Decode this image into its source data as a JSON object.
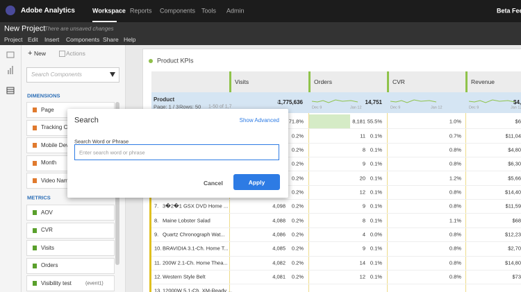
{
  "topbar": {
    "app": "Adobe Analytics",
    "nav": [
      "Workspace",
      "Reports",
      "Components",
      "Tools",
      "Admin"
    ],
    "right": "Beta Feed"
  },
  "project": {
    "title": "New Project",
    "status": "There are unsaved changes",
    "menu": [
      "Project",
      "Edit",
      "Insert",
      "Components",
      "Share",
      "Help"
    ]
  },
  "sidebar": {
    "new": "New",
    "actions": "Actions",
    "search_placeholder": "Search Components",
    "dimensions_heading": "DIMENSIONS",
    "dimensions": [
      "Page",
      "Tracking Co",
      "Mobile Dev",
      "Month",
      "Video Nam"
    ],
    "metrics_heading": "METRICS",
    "metrics": [
      "AOV",
      "CVR",
      "Visits",
      "Orders",
      "Visibility test"
    ],
    "metric_note": "(event1)"
  },
  "panel": {
    "title": "Product KPIs",
    "columns": [
      "Visits",
      "Orders",
      "CVR",
      "Revenue"
    ],
    "row_header": {
      "label": "Product",
      "page": "Page: 1 / 3",
      "rows": "Rows: 50",
      "range": "1-50 of 1,7"
    },
    "totals": {
      "visits": "1,775,636",
      "orders": "14,751",
      "revenue": "$4,"
    },
    "spark": {
      "start": "Dec 9",
      "end": "Jan 12"
    },
    "rows": [
      [
        null,
        null,
        null,
        "71.8%",
        "8,181",
        "55.5%",
        "1.0%",
        "$6"
      ],
      [
        null,
        null,
        null,
        "0.2%",
        "11",
        "0.1%",
        "0.7%",
        "$11,04"
      ],
      [
        null,
        null,
        null,
        "0.2%",
        "8",
        "0.1%",
        "0.8%",
        "$4,80"
      ],
      [
        null,
        null,
        null,
        "0.2%",
        "9",
        "0.1%",
        "0.8%",
        "$6,30"
      ],
      [
        null,
        null,
        null,
        "0.2%",
        "20",
        "0.1%",
        "1.2%",
        "$5,66"
      ],
      [
        null,
        null,
        null,
        "0.2%",
        "12",
        "0.1%",
        "0.8%",
        "$14,40"
      ],
      [
        "7.",
        "3�2�1 GSX DVD Home ...",
        "4,098",
        "0.2%",
        "9",
        "0.1%",
        "0.8%",
        "$11,59"
      ],
      [
        "8.",
        "Maine Lobster Salad",
        "4,088",
        "0.2%",
        "8",
        "0.1%",
        "1.1%",
        "$68"
      ],
      [
        "9.",
        "Quartz Chronograph Wat...",
        "4,086",
        "0.2%",
        "4",
        "0.0%",
        "0.8%",
        "$12,23"
      ],
      [
        "10.",
        "BRAVIDIA 3.1-Ch. Home T...",
        "4,085",
        "0.2%",
        "9",
        "0.1%",
        "0.8%",
        "$2,70"
      ],
      [
        "11.",
        "200W 2.1-Ch. Home Thea...",
        "4,082",
        "0.2%",
        "14",
        "0.1%",
        "0.8%",
        "$14,80"
      ],
      [
        "12.",
        "Western Style Belt",
        "4,081",
        "0.2%",
        "12",
        "0.1%",
        "0.8%",
        "$73"
      ],
      [
        "13.",
        "12000W 5.1-Ch. XM-Ready ...",
        null,
        null,
        null,
        null,
        null,
        null
      ]
    ]
  },
  "dialog": {
    "title": "Search",
    "advanced": "Show Advanced",
    "label": "Search Word or Phrase",
    "placeholder": "Enter search word or phrase",
    "cancel": "Cancel",
    "apply": "Apply"
  }
}
